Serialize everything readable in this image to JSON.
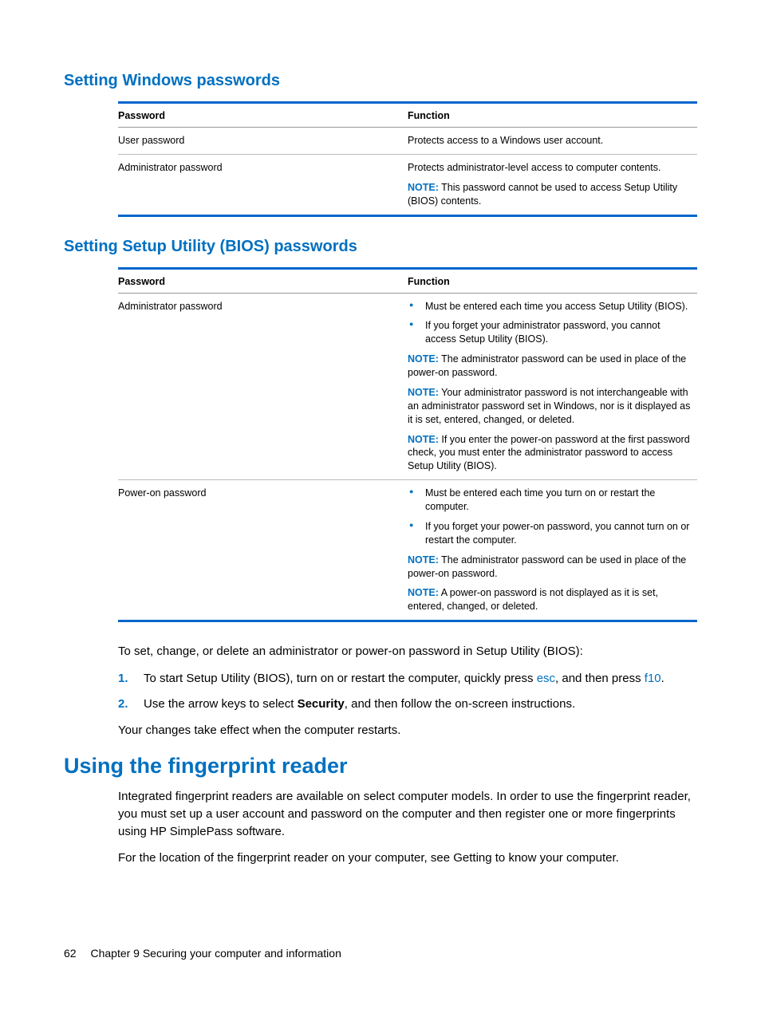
{
  "colors": {
    "accent": "#0070c0",
    "rule": "#0066cc",
    "text": "#000000",
    "background": "#ffffff"
  },
  "typography": {
    "body_pt": 15,
    "table_pt": 12.5,
    "h2_pt": 20,
    "h1_pt": 27,
    "family": "Arial"
  },
  "section1": {
    "heading": "Setting Windows passwords",
    "table": {
      "columns": [
        "Password",
        "Function"
      ],
      "rows": [
        {
          "password": "User password",
          "function_text": "Protects access to a Windows user account."
        },
        {
          "password": "Administrator password",
          "function_text": "Protects administrator-level access to computer contents.",
          "note_label": "NOTE:",
          "note_text": "This password cannot be used to access Setup Utility (BIOS) contents."
        }
      ]
    }
  },
  "section2": {
    "heading": "Setting Setup Utility (BIOS) passwords",
    "table": {
      "columns": [
        "Password",
        "Function"
      ],
      "rows": [
        {
          "password": "Administrator password",
          "bullets": [
            "Must be entered each time you access Setup Utility (BIOS).",
            "If you forget your administrator password, you cannot access Setup Utility (BIOS)."
          ],
          "notes": [
            {
              "label": "NOTE:",
              "text": "The administrator password can be used in place of the power-on password."
            },
            {
              "label": "NOTE:",
              "text": "Your administrator password is not interchangeable with an administrator password set in Windows, nor is it displayed as it is set, entered, changed, or deleted."
            },
            {
              "label": "NOTE:",
              "text": "If you enter the power-on password at the first password check, you must enter the administrator password to access Setup Utility (BIOS)."
            }
          ]
        },
        {
          "password": "Power-on password",
          "bullets": [
            "Must be entered each time you turn on or restart the computer.",
            "If you forget your power-on password, you cannot turn on or restart the computer."
          ],
          "notes": [
            {
              "label": "NOTE:",
              "text": "The administrator password can be used in place of the power-on password."
            },
            {
              "label": "NOTE:",
              "text": "A power-on password is not displayed as it is set, entered, changed, or deleted."
            }
          ]
        }
      ]
    }
  },
  "instructions": {
    "intro": "To set, change, or delete an administrator or power-on password in Setup Utility (BIOS):",
    "steps": [
      {
        "pre": "To start Setup Utility (BIOS), turn on or restart the computer, quickly press ",
        "key1": "esc",
        "mid": ", and then press ",
        "key2": "f10",
        "post": "."
      },
      {
        "pre": "Use the arrow keys to select ",
        "bold": "Security",
        "post": ", and then follow the on-screen instructions."
      }
    ],
    "outro": "Your changes take effect when the computer restarts."
  },
  "section3": {
    "heading": "Using the fingerprint reader",
    "para1": "Integrated fingerprint readers are available on select computer models. In order to use the fingerprint reader, you must set up a user account and password on the computer and then register one or more fingerprints using HP SimplePass software.",
    "para2": "For the location of the fingerprint reader on your computer, see Getting to know your computer."
  },
  "footer": {
    "page": "62",
    "chapter": "Chapter 9   Securing your computer and information"
  }
}
